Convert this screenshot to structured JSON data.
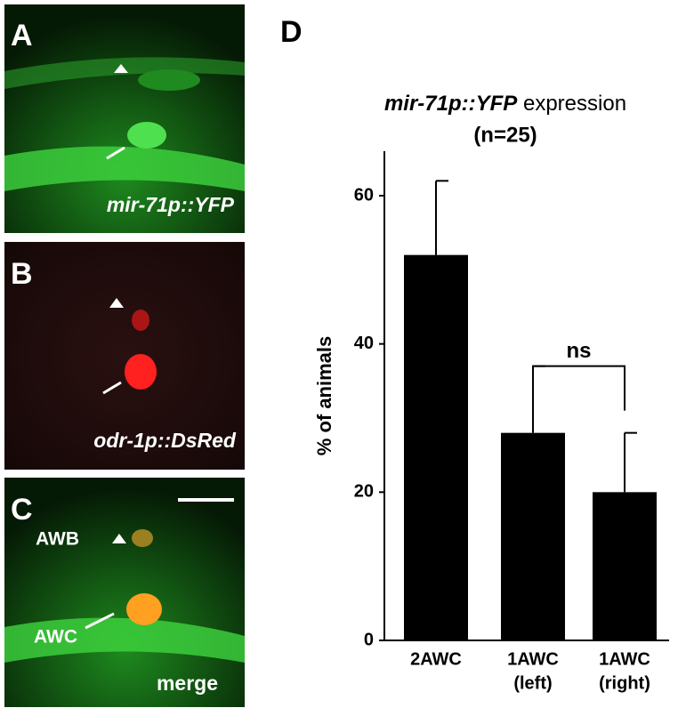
{
  "panels": [
    {
      "label": "A",
      "caption": "mir-71p::YFP"
    },
    {
      "label": "B",
      "caption": "odr-1p::DsRed"
    },
    {
      "label": "C",
      "caption": "merge",
      "annotations": [
        "AWB",
        "AWC"
      ]
    }
  ],
  "chart_data": {
    "type": "bar",
    "panel": "D",
    "title": [
      "mir-71p::YFP",
      "expression"
    ],
    "subtitle": "(n=25)",
    "y_label": "% of animals",
    "categories": [
      [
        "2AWC"
      ],
      [
        "1AWC",
        "(left)"
      ],
      [
        "1AWC",
        "(right)"
      ]
    ],
    "values": [
      52,
      28,
      20
    ],
    "errors": [
      10,
      9,
      8
    ],
    "color": "#000000",
    "ylim": [
      0,
      66
    ],
    "yticks": [
      0,
      20,
      40,
      60
    ],
    "annotations": [
      {
        "text": "ns",
        "between": [
          1,
          2
        ]
      }
    ]
  }
}
